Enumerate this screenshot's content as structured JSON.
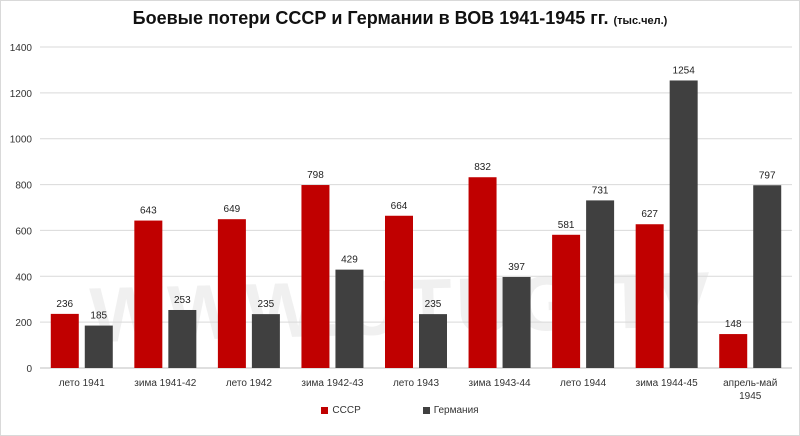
{
  "title": "Боевые потери СССР и Германии в ВОВ 1941-1945 гг.",
  "title_unit": "(тыс.чел.)",
  "watermark": "WWW.UTUG.TV",
  "colors": {
    "ussr": "#c00000",
    "germany": "#404040",
    "grid": "#d9d9d9",
    "axis": "#bfbfbf"
  },
  "chart_data": {
    "type": "bar",
    "title": "Боевые потери СССР и Германии в ВОВ 1941-1945 гг. (тыс.чел.)",
    "categories": [
      [
        "лето 1941"
      ],
      [
        "зима 1941-42"
      ],
      [
        "лето 1942"
      ],
      [
        "зима 1942-43"
      ],
      [
        "лето 1943"
      ],
      [
        "зима 1943-44"
      ],
      [
        "лето 1944"
      ],
      [
        "зима 1944-45"
      ],
      [
        "апрель-май",
        "1945"
      ]
    ],
    "series": [
      {
        "name": "СССР",
        "values": [
          236,
          643,
          649,
          798,
          664,
          832,
          581,
          627,
          148
        ]
      },
      {
        "name": "Германия",
        "values": [
          185,
          253,
          235,
          429,
          235,
          397,
          731,
          1254,
          797
        ]
      }
    ],
    "ylim": [
      0,
      1400
    ],
    "yticks": [
      "0",
      "200",
      "400",
      "600",
      "800",
      "1000",
      "1200",
      "1400"
    ],
    "grid": true,
    "legend_position": "bottom",
    "data_labels": true
  }
}
